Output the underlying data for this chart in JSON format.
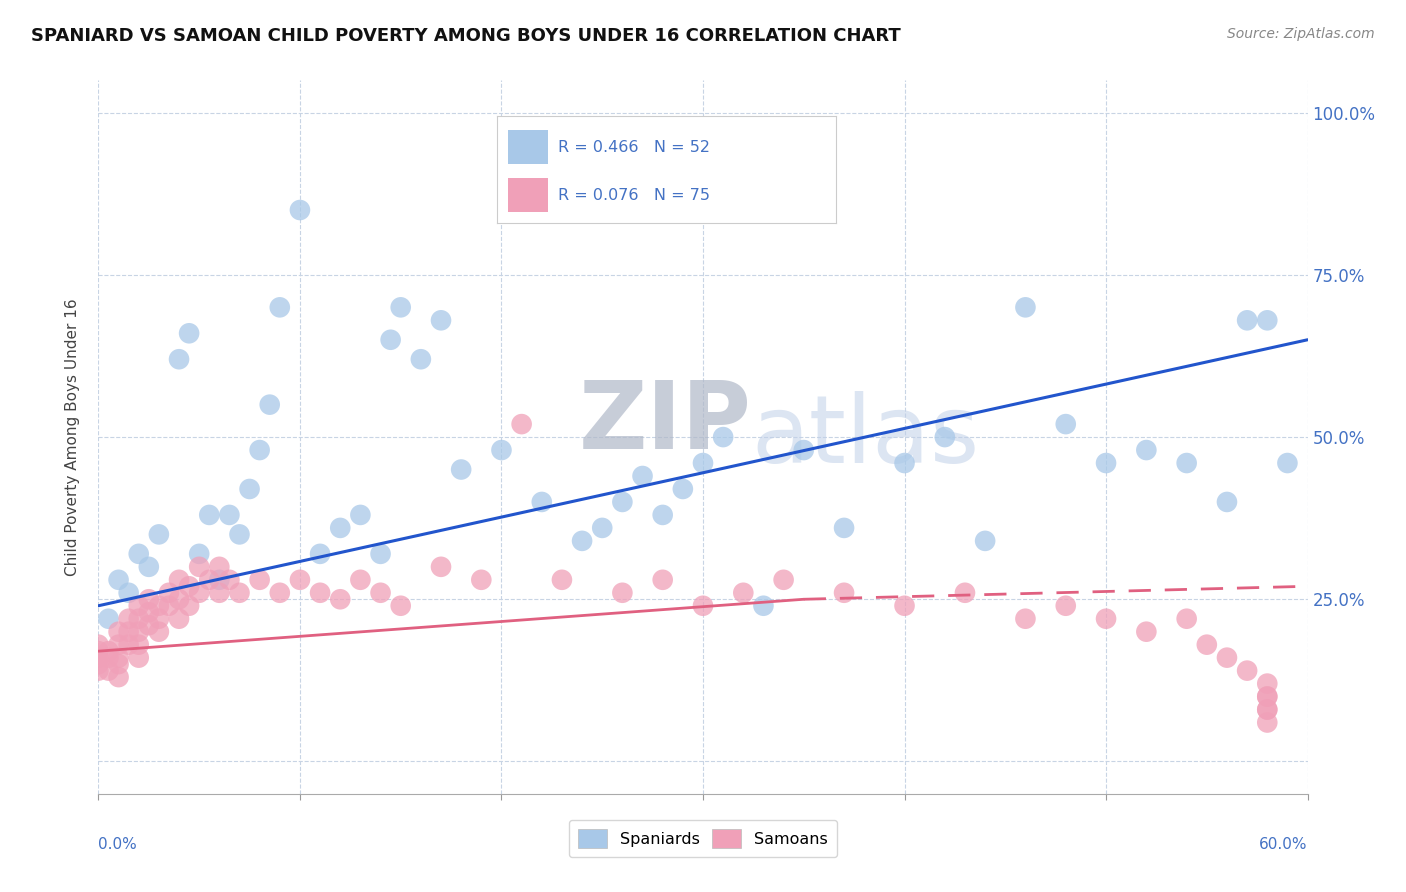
{
  "title": "SPANIARD VS SAMOAN CHILD POVERTY AMONG BOYS UNDER 16 CORRELATION CHART",
  "source": "Source: ZipAtlas.com",
  "ylabel": "Child Poverty Among Boys Under 16",
  "xlim": [
    0.0,
    0.6
  ],
  "ylim": [
    -0.05,
    1.05
  ],
  "ytick_vals": [
    0.0,
    0.25,
    0.5,
    0.75,
    1.0
  ],
  "ytick_labels": [
    "",
    "25.0%",
    "50.0%",
    "75.0%",
    "100.0%"
  ],
  "spaniards_R": 0.466,
  "spaniards_N": 52,
  "samoans_R": 0.076,
  "samoans_N": 75,
  "spaniard_color": "#a8c8e8",
  "samoan_color": "#f0a0b8",
  "spaniard_line_color": "#2255cc",
  "samoan_line_color": "#e06080",
  "watermark_zip": "ZIP",
  "watermark_atlas": "atlas",
  "sp_x": [
    0.005,
    0.01,
    0.015,
    0.02,
    0.025,
    0.03,
    0.04,
    0.045,
    0.05,
    0.055,
    0.06,
    0.065,
    0.07,
    0.075,
    0.08,
    0.085,
    0.09,
    0.1,
    0.11,
    0.12,
    0.13,
    0.14,
    0.145,
    0.15,
    0.16,
    0.17,
    0.18,
    0.2,
    0.22,
    0.24,
    0.25,
    0.26,
    0.27,
    0.28,
    0.29,
    0.3,
    0.31,
    0.33,
    0.35,
    0.37,
    0.4,
    0.42,
    0.44,
    0.46,
    0.48,
    0.5,
    0.52,
    0.54,
    0.56,
    0.57,
    0.58,
    0.59
  ],
  "sp_y": [
    0.22,
    0.28,
    0.26,
    0.32,
    0.3,
    0.35,
    0.62,
    0.66,
    0.32,
    0.38,
    0.28,
    0.38,
    0.35,
    0.42,
    0.48,
    0.55,
    0.7,
    0.85,
    0.32,
    0.36,
    0.38,
    0.32,
    0.65,
    0.7,
    0.62,
    0.68,
    0.45,
    0.48,
    0.4,
    0.34,
    0.36,
    0.4,
    0.44,
    0.38,
    0.42,
    0.46,
    0.5,
    0.24,
    0.48,
    0.36,
    0.46,
    0.5,
    0.34,
    0.7,
    0.52,
    0.46,
    0.48,
    0.46,
    0.4,
    0.68,
    0.68,
    0.46
  ],
  "sa_x": [
    0.0,
    0.0,
    0.0,
    0.0,
    0.0,
    0.005,
    0.005,
    0.005,
    0.01,
    0.01,
    0.01,
    0.01,
    0.01,
    0.015,
    0.015,
    0.015,
    0.02,
    0.02,
    0.02,
    0.02,
    0.02,
    0.025,
    0.025,
    0.025,
    0.03,
    0.03,
    0.03,
    0.035,
    0.035,
    0.04,
    0.04,
    0.04,
    0.045,
    0.045,
    0.05,
    0.05,
    0.055,
    0.06,
    0.06,
    0.065,
    0.07,
    0.08,
    0.09,
    0.1,
    0.11,
    0.12,
    0.13,
    0.14,
    0.15,
    0.17,
    0.19,
    0.21,
    0.23,
    0.26,
    0.28,
    0.3,
    0.32,
    0.34,
    0.37,
    0.4,
    0.43,
    0.46,
    0.48,
    0.5,
    0.52,
    0.54,
    0.55,
    0.56,
    0.57,
    0.58,
    0.58,
    0.58,
    0.58,
    0.58,
    0.58
  ],
  "sa_y": [
    0.18,
    0.17,
    0.16,
    0.15,
    0.14,
    0.17,
    0.16,
    0.14,
    0.2,
    0.18,
    0.16,
    0.15,
    0.13,
    0.22,
    0.2,
    0.18,
    0.24,
    0.22,
    0.2,
    0.18,
    0.16,
    0.25,
    0.23,
    0.21,
    0.24,
    0.22,
    0.2,
    0.26,
    0.24,
    0.28,
    0.25,
    0.22,
    0.27,
    0.24,
    0.3,
    0.26,
    0.28,
    0.26,
    0.3,
    0.28,
    0.26,
    0.28,
    0.26,
    0.28,
    0.26,
    0.25,
    0.28,
    0.26,
    0.24,
    0.3,
    0.28,
    0.52,
    0.28,
    0.26,
    0.28,
    0.24,
    0.26,
    0.28,
    0.26,
    0.24,
    0.26,
    0.22,
    0.24,
    0.22,
    0.2,
    0.22,
    0.18,
    0.16,
    0.14,
    0.12,
    0.1,
    0.08,
    0.1,
    0.08,
    0.06
  ]
}
